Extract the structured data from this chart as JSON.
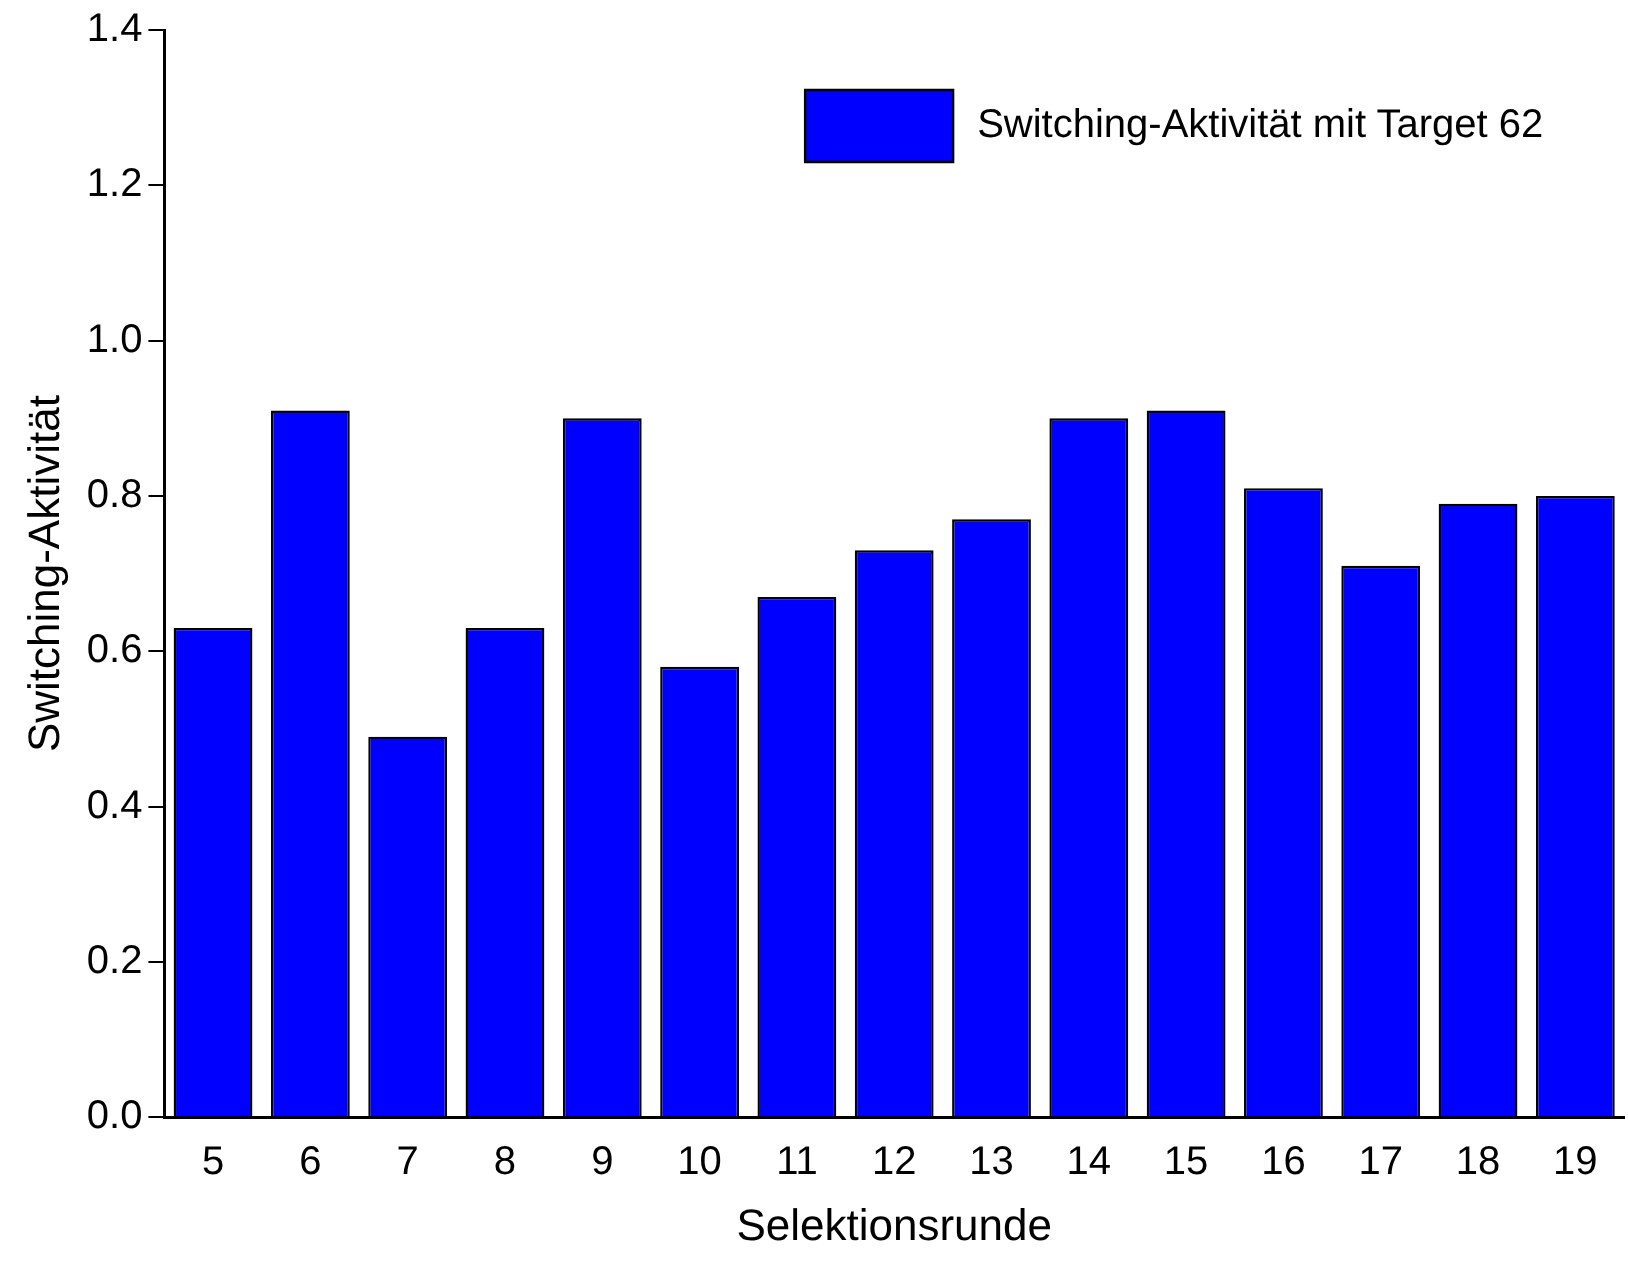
{
  "chart_data": {
    "type": "bar",
    "xlabel": "Selektionsrunde",
    "ylabel": "Switching-Aktivität",
    "categories": [
      "5",
      "6",
      "7",
      "8",
      "9",
      "10",
      "11",
      "12",
      "13",
      "14",
      "15",
      "16",
      "17",
      "18",
      "19"
    ],
    "series": [
      {
        "name": "Switching-Aktivität mit Target 62",
        "color": "#0000ff",
        "values": [
          0.63,
          0.91,
          0.49,
          0.63,
          0.9,
          0.58,
          0.67,
          0.73,
          0.77,
          0.9,
          0.91,
          0.81,
          0.71,
          0.79,
          0.8
        ]
      }
    ],
    "ylim": [
      0,
      1.4
    ],
    "yticks": [
      {
        "value": 0,
        "label": "0.0"
      },
      {
        "value": 0.2,
        "label": "0.2"
      },
      {
        "value": 0.4,
        "label": "0.4"
      },
      {
        "value": 0.6,
        "label": "0.6"
      },
      {
        "value": 0.8,
        "label": "0.8"
      },
      {
        "value": 1,
        "label": "1.0"
      },
      {
        "value": 1.2,
        "label": "1.2"
      },
      {
        "value": 1.4,
        "label": "1.4"
      }
    ],
    "legend": "top right"
  }
}
